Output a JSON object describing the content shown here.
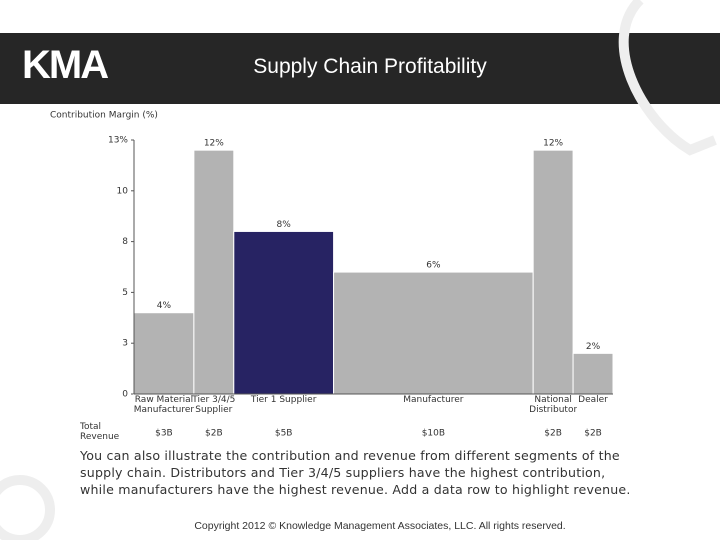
{
  "header": {
    "logo": "KMA",
    "title": "Supply Chain Profitability"
  },
  "chart_data": {
    "type": "variwide",
    "y_label": "Contribution Margin (%)",
    "categories": [
      "Raw Material Manufacturer",
      "Tier 3/4/5 Supplier",
      "Tier 1 Supplier",
      "Manufacturer",
      "National Distributor",
      "Dealer"
    ],
    "values": [
      4,
      12,
      8,
      6,
      12,
      2
    ],
    "value_labels": [
      "4%",
      "12%",
      "8%",
      "6%",
      "12%",
      "2%"
    ],
    "colors": [
      "#b3b3b3",
      "#b3b3b3",
      "#272363",
      "#b3b3b3",
      "#b3b3b3",
      "#b3b3b3"
    ],
    "widths": {
      "label": "Total Revenue",
      "values": [
        3,
        2,
        5,
        10,
        2,
        2
      ],
      "value_labels": [
        "$3B",
        "$2B",
        "$5B",
        "$10B",
        "$2B",
        "$2B"
      ]
    },
    "ylim": [
      0,
      12.5
    ],
    "yticks": [
      0,
      {
        "value": 2.5,
        "label": "3"
      },
      5,
      {
        "value": 7.5,
        "label": "8"
      },
      10,
      {
        "value": 12.5,
        "label": "13%"
      }
    ]
  },
  "description": "You can also illustrate the contribution and revenue from different segments of the supply chain. Distributors and Tier 3/4/5 suppliers have the highest contribution, while manufacturers have the highest revenue. Add a data row to highlight revenue.",
  "footer": "Copyright 2012 © Knowledge Management Associates, LLC. All rights reserved."
}
